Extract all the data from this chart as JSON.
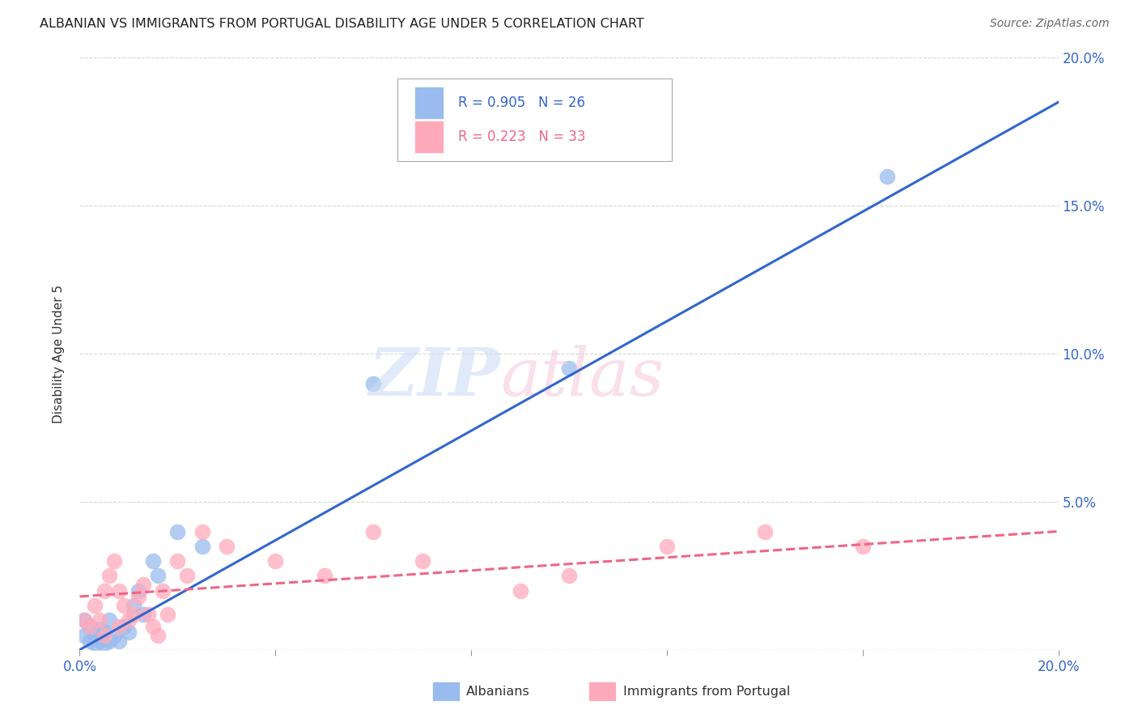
{
  "title": "ALBANIAN VS IMMIGRANTS FROM PORTUGAL DISABILITY AGE UNDER 5 CORRELATION CHART",
  "source": "Source: ZipAtlas.com",
  "ylabel": "Disability Age Under 5",
  "xlim": [
    0.0,
    0.2
  ],
  "ylim": [
    0.0,
    0.2
  ],
  "x_ticks": [
    0.0,
    0.04,
    0.08,
    0.12,
    0.16,
    0.2
  ],
  "y_ticks": [
    0.0,
    0.05,
    0.1,
    0.15,
    0.2
  ],
  "albanian_R": 0.905,
  "albanian_N": 26,
  "portugal_R": 0.223,
  "portugal_N": 33,
  "blue_scatter_color": "#99bbee",
  "pink_scatter_color": "#ffaabb",
  "blue_line_color": "#3366cc",
  "pink_line_color": "#ee6688",
  "blue_label_color": "#3366cc",
  "pink_label_color": "#ee6688",
  "right_axis_color": "#3366cc",
  "grid_color": "#cccccc",
  "albanian_x": [
    0.001,
    0.001,
    0.002,
    0.002,
    0.003,
    0.003,
    0.004,
    0.004,
    0.005,
    0.005,
    0.006,
    0.006,
    0.007,
    0.008,
    0.009,
    0.01,
    0.011,
    0.012,
    0.013,
    0.015,
    0.016,
    0.02,
    0.025,
    0.06,
    0.1,
    0.165
  ],
  "albanian_y": [
    0.005,
    0.01,
    0.003,
    0.008,
    0.002,
    0.005,
    0.003,
    0.007,
    0.002,
    0.006,
    0.003,
    0.01,
    0.005,
    0.003,
    0.008,
    0.006,
    0.015,
    0.02,
    0.012,
    0.03,
    0.025,
    0.04,
    0.035,
    0.09,
    0.095,
    0.16
  ],
  "portugal_x": [
    0.001,
    0.002,
    0.003,
    0.004,
    0.005,
    0.005,
    0.006,
    0.007,
    0.008,
    0.008,
    0.009,
    0.01,
    0.011,
    0.012,
    0.013,
    0.014,
    0.015,
    0.016,
    0.017,
    0.018,
    0.02,
    0.022,
    0.025,
    0.03,
    0.04,
    0.05,
    0.06,
    0.07,
    0.09,
    0.1,
    0.12,
    0.14,
    0.16
  ],
  "portugal_y": [
    0.01,
    0.008,
    0.015,
    0.01,
    0.02,
    0.005,
    0.025,
    0.03,
    0.02,
    0.008,
    0.015,
    0.01,
    0.012,
    0.018,
    0.022,
    0.012,
    0.008,
    0.005,
    0.02,
    0.012,
    0.03,
    0.025,
    0.04,
    0.035,
    0.03,
    0.025,
    0.04,
    0.03,
    0.02,
    0.025,
    0.035,
    0.04,
    0.035
  ],
  "alb_line_x0": 0.0,
  "alb_line_y0": 0.0,
  "alb_line_x1": 0.2,
  "alb_line_y1": 0.185,
  "por_line_x0": 0.0,
  "por_line_y0": 0.018,
  "por_line_x1": 0.2,
  "por_line_y1": 0.04
}
